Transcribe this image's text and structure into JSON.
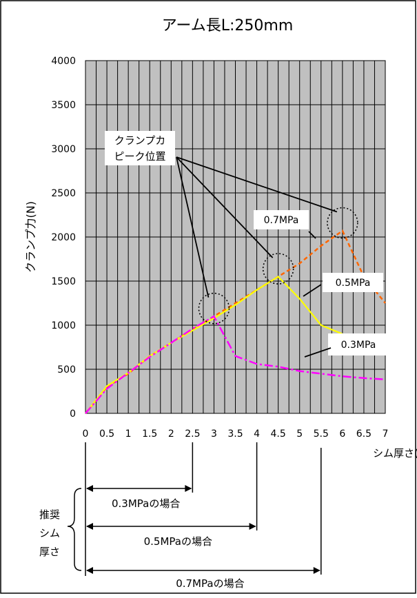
{
  "chart_data": {
    "type": "line",
    "title": "アーム長L:250mm",
    "ylabel": "クランプ力(N)",
    "xlabel": "シム厚さ(mm)",
    "xlim": [
      0,
      7
    ],
    "ylim": [
      0,
      4000
    ],
    "x_ticks": [
      "0",
      "0.5",
      "1",
      "1.5",
      "2",
      "2.5",
      "3",
      "3.5",
      "4",
      "4.5",
      "5",
      "5.5",
      "6",
      "6.5",
      "7"
    ],
    "y_ticks": [
      "0",
      "500",
      "1000",
      "1500",
      "2000",
      "2500",
      "3000",
      "3500",
      "4000"
    ],
    "grid": true,
    "series": [
      {
        "name": "0.7MPa",
        "color": "#ff6600",
        "style": "dashed",
        "x": [
          0,
          0.5,
          1,
          1.5,
          2,
          2.5,
          3,
          3.5,
          4,
          4.5,
          5,
          5.5,
          6,
          6.5,
          7
        ],
        "y": [
          0,
          300,
          450,
          650,
          800,
          950,
          1100,
          1250,
          1400,
          1550,
          1700,
          1900,
          2070,
          1550,
          1250
        ]
      },
      {
        "name": "0.5MPa",
        "color": "#ffff00",
        "style": "solid",
        "x": [
          0,
          0.5,
          1,
          1.5,
          2,
          2.5,
          3,
          3.5,
          4,
          4.5,
          5,
          5.5,
          6
        ],
        "y": [
          0,
          310,
          460,
          650,
          800,
          940,
          1080,
          1230,
          1400,
          1550,
          1300,
          1000,
          900
        ]
      },
      {
        "name": "0.3MPa",
        "color": "#ff00ff",
        "style": "dashdot",
        "x": [
          0,
          0.5,
          1,
          1.5,
          2,
          2.5,
          3,
          3.5,
          4,
          4.5,
          5,
          5.5,
          6,
          6.5,
          7
        ],
        "y": [
          0,
          280,
          460,
          640,
          800,
          960,
          1100,
          650,
          560,
          530,
          480,
          450,
          420,
          400,
          385
        ]
      }
    ],
    "peak_markers_x": [
      3,
      4.5,
      6
    ],
    "annotations": {
      "peak_label_line1": "クランプカ",
      "peak_label_line2": "ピーク位置",
      "label_07": "0.7MPa",
      "label_05": "0.5MPa",
      "label_03": "0.3MPa"
    },
    "recommended": {
      "label_chars": [
        "推奨",
        "シム",
        "厚さ"
      ],
      "ranges": [
        {
          "label": "0.3MPaの場合",
          "to_x": 2.5
        },
        {
          "label": "0.5MPaの場合",
          "to_x": 4
        },
        {
          "label": "0.7MPaの場合",
          "to_x": 5.5
        }
      ]
    }
  }
}
